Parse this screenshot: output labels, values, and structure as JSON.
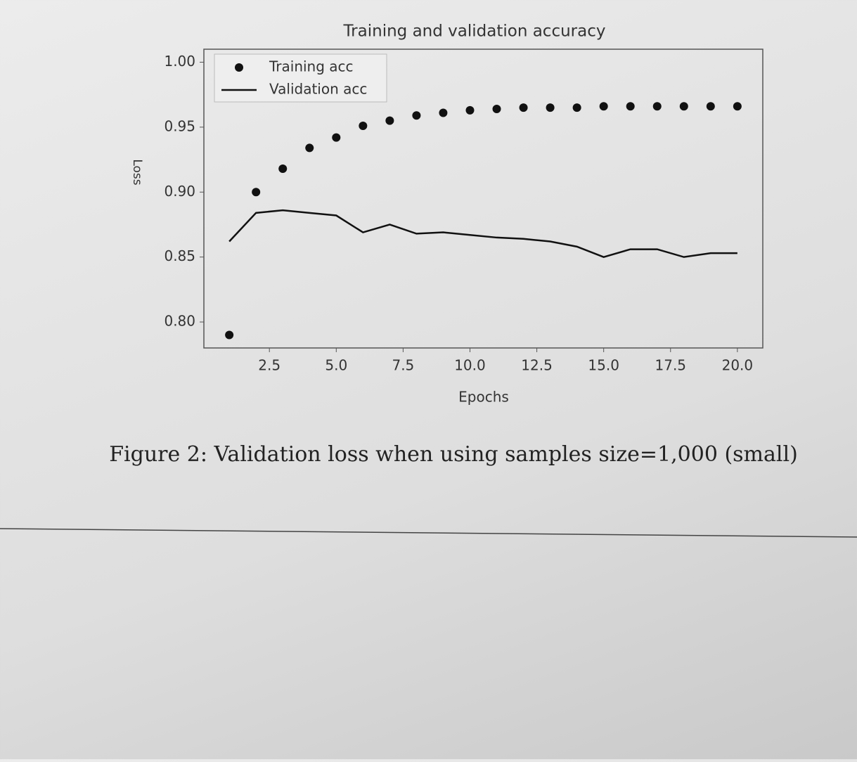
{
  "chart_data": {
    "type": "line",
    "title": "Training and validation accuracy",
    "x_label": "Epochs",
    "y_label": "Loss",
    "x": [
      1,
      2,
      3,
      4,
      5,
      6,
      7,
      8,
      9,
      10,
      11,
      12,
      13,
      14,
      15,
      16,
      17,
      18,
      19,
      20
    ],
    "series": [
      {
        "name": "Training acc",
        "color": "#111111",
        "style": "dots",
        "values": [
          0.79,
          0.9,
          0.918,
          0.934,
          0.942,
          0.951,
          0.955,
          0.959,
          0.961,
          0.963,
          0.964,
          0.965,
          0.965,
          0.965,
          0.966,
          0.966,
          0.966,
          0.966,
          0.966,
          0.966
        ]
      },
      {
        "name": "Validation acc",
        "color": "#111111",
        "style": "line",
        "values": [
          0.862,
          0.884,
          0.886,
          0.884,
          0.882,
          0.869,
          0.875,
          0.868,
          0.869,
          0.867,
          0.865,
          0.864,
          0.862,
          0.858,
          0.85,
          0.856,
          0.856,
          0.85,
          0.853,
          0.853
        ]
      }
    ],
    "xlim": [
      0.05,
      20.95
    ],
    "xticks": [
      2.5,
      {
        "value": 5,
        "label": "5.0"
      },
      7.5,
      {
        "value": 10,
        "label": "10.0"
      },
      12.5,
      {
        "value": 15,
        "label": "15.0"
      },
      17.5,
      {
        "value": 20,
        "label": "20.0"
      }
    ],
    "ylim": [
      0.78,
      1.01
    ],
    "yticks": [
      {
        "value": 0.8,
        "label": "0.80"
      },
      0.85,
      {
        "value": 0.9,
        "label": "0.90"
      },
      0.95,
      {
        "value": 1,
        "label": "1.00"
      }
    ],
    "legend": "upper left",
    "caption": "Figure 2: Validation loss when using samples size=1,000 (small)"
  }
}
